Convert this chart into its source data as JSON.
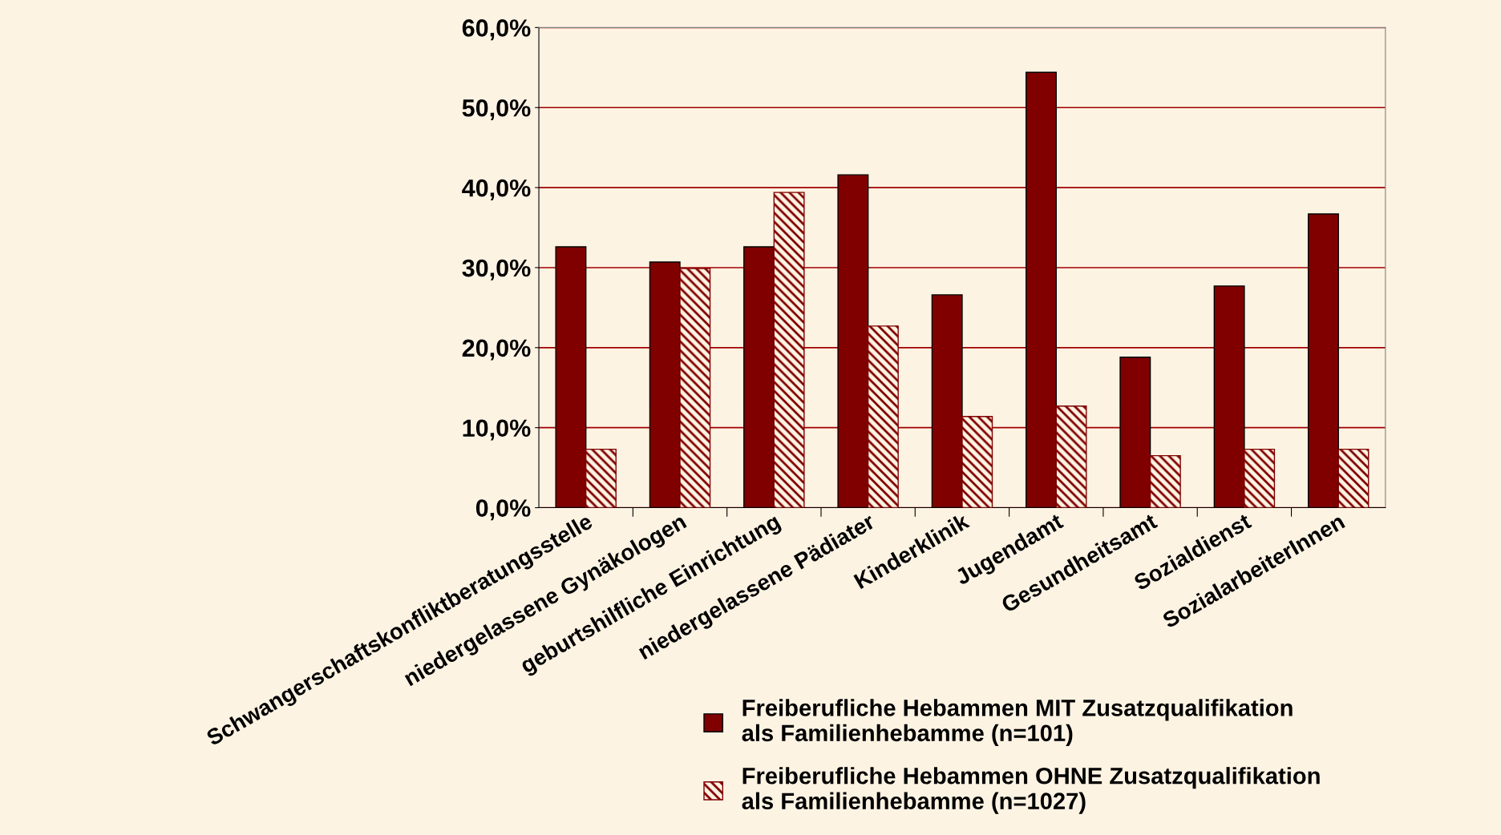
{
  "chart_data": {
    "type": "bar",
    "categories": [
      "Schwangerschaftskonfliktberatungsstelle",
      "niedergelassene Gynäkologen",
      "geburtshilfliche Einrichtung",
      "niedergelassene Pädiater",
      "Kinderklinik",
      "Jugendamt",
      "Gesundheitsamt",
      "Sozialdienst",
      "SozialarbeiterInnen"
    ],
    "series": [
      {
        "name": "Freiberufliche Hebammen MIT Zusatzqualifikation\nals Familienhebamme (n=101)",
        "color": "#800000",
        "values": [
          32.6,
          30.7,
          32.6,
          41.6,
          26.6,
          54.4,
          18.8,
          27.7,
          36.7
        ]
      },
      {
        "name": "Freiberufliche Hebammen OHNE Zusatzqualifikation\nals Familienhebamme (n=1027)",
        "color": "#800000",
        "values": [
          7.3,
          29.9,
          39.4,
          22.7,
          11.4,
          12.7,
          6.5,
          7.3,
          7.3
        ]
      }
    ],
    "ylim": [
      0,
      60
    ],
    "yticks": [
      {
        "value": 0,
        "label": "0,0%"
      },
      {
        "value": 10,
        "label": "10,0%"
      },
      {
        "value": 20,
        "label": "20,0%"
      },
      {
        "value": 30,
        "label": "30,0%"
      },
      {
        "value": 40,
        "label": "40,0%"
      },
      {
        "value": 50,
        "label": "50,0%"
      },
      {
        "value": 60,
        "label": "60,0%"
      }
    ],
    "grid": "y",
    "legend": "bottom right"
  }
}
